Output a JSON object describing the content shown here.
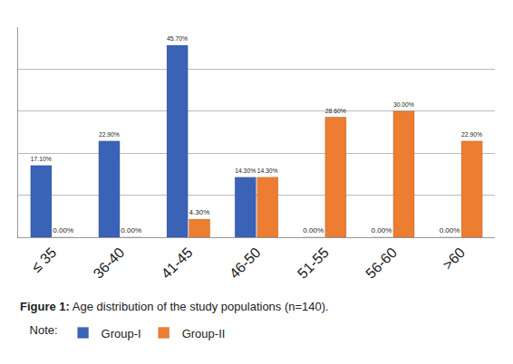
{
  "chart_data": {
    "type": "bar",
    "caption_label": "Figure 1:",
    "caption": "Age distribution of the study populations (n=140).",
    "legend_title": "Note:",
    "categories": [
      "≤ 35",
      "36-40",
      "41-45",
      "46-50",
      "51-55",
      "56-60",
      ">60"
    ],
    "series": [
      {
        "name": "Group-I",
        "color": "#3a63b8",
        "values": [
          17.1,
          22.9,
          45.7,
          14.3,
          0,
          0,
          0
        ],
        "value_labels": [
          "17.10%",
          "22.90%",
          "45.70%",
          "14.30%",
          "0.00%",
          "0.00%",
          "0.00%"
        ]
      },
      {
        "name": "Group-II",
        "color": "#ed7d31",
        "values": [
          0,
          0,
          4.3,
          14.3,
          28.6,
          30,
          22.9
        ],
        "value_labels": [
          "0.00%",
          "0.00%",
          "4.30%",
          "14.30%",
          "28.60%",
          "30.00%",
          "22.90%"
        ]
      }
    ],
    "ylim": [
      0,
      50
    ],
    "yticks": [
      0,
      10,
      20,
      30,
      40,
      50
    ],
    "grid": true,
    "data_labels": true,
    "tick_labels": "x",
    "legend": "bottom"
  }
}
